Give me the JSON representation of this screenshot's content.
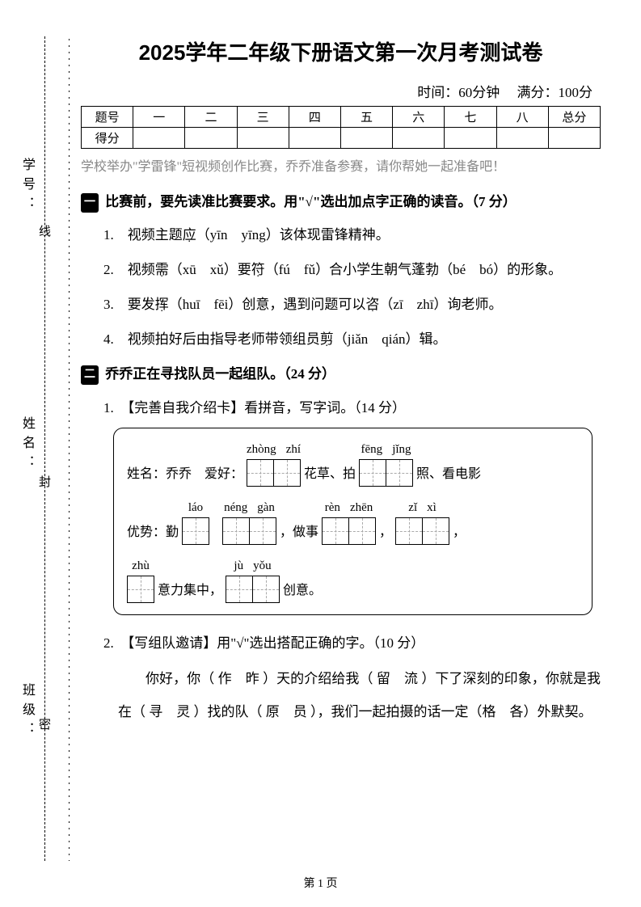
{
  "title": "2025学年二年级下册语文第一次月考测试卷",
  "meta": {
    "time_label": "时间：60分钟",
    "score_label": "满分：100分"
  },
  "binding": {
    "labels": [
      "学号：",
      "姓名：",
      "班级："
    ],
    "chars": [
      "线",
      "封",
      "密"
    ]
  },
  "score_table": {
    "header": [
      "题号",
      "一",
      "二",
      "三",
      "四",
      "五",
      "六",
      "七",
      "八",
      "总分"
    ],
    "row_label": "得分"
  },
  "intro": "学校举办\"学雷锋\"短视频创作比赛，乔乔准备参赛，请你帮她一起准备吧！",
  "section1": {
    "badge": "一",
    "title": "比赛前，要先读准比赛要求。用\"√\"选出加点字正确的读音。（7 分）",
    "items": [
      {
        "pre": "1.　视频主题",
        "dot": "应",
        "post": "（yīn　yīng）该体现雷锋精神。"
      },
      {
        "pre": "2.　视频",
        "dot": "需",
        "mid1": "（xū　xǔ）要",
        "dot2": "符",
        "mid2": "（fú　fǔ）合小学生朝气蓬",
        "dot3": "勃",
        "post": "（bé　bó）的形象。"
      },
      {
        "pre": "3.　要发",
        "dot": "挥",
        "mid1": "（huī　fēi）创意，遇到问题可以",
        "dot2": "咨",
        "post": "（zī　zhī）询老师。"
      },
      {
        "pre": "4.　视频拍好后由指导老师带领组员",
        "dot": "剪",
        "post": "（jiǎn　qián）辑。"
      }
    ]
  },
  "section2": {
    "badge": "二",
    "title": "乔乔正在寻找队员一起组队。（24 分）",
    "q1": "1.　【完善自我介绍卡】看拼音，写字词。（14 分）",
    "card": {
      "row1": {
        "t1": "姓名：乔乔　爱好：",
        "p1": [
          "zhòng",
          "zhí"
        ],
        "t2": "花草、拍",
        "p2": [
          "fēng",
          "jǐng"
        ],
        "t3": "照、看电影"
      },
      "row2": {
        "t1": "优势：勤",
        "p1": [
          "láo"
        ],
        "t1b": "，",
        "p2": [
          "néng",
          "gàn"
        ],
        "t2": "，做事",
        "p3": [
          "rèn",
          "zhēn"
        ],
        "t3": "，",
        "p4": [
          "zǐ",
          "xì"
        ],
        "t4": "，"
      },
      "row3": {
        "p1": [
          "zhù"
        ],
        "t1": "意力集中，",
        "p2": [
          "jù",
          "yǒu"
        ],
        "t2": "创意。"
      }
    },
    "q2": "2.　【写组队邀请】用\"√\"选出搭配正确的字。（10 分）",
    "para": "你好，你（ 作　昨 ）天的介绍给我（ 留　流 ）下了深刻的印象，你就是我在（ 寻　灵 ）找的队（ 原　员 ），我们一起拍摄的话一定（格　各）外默契。"
  },
  "footer": "第 1 页"
}
